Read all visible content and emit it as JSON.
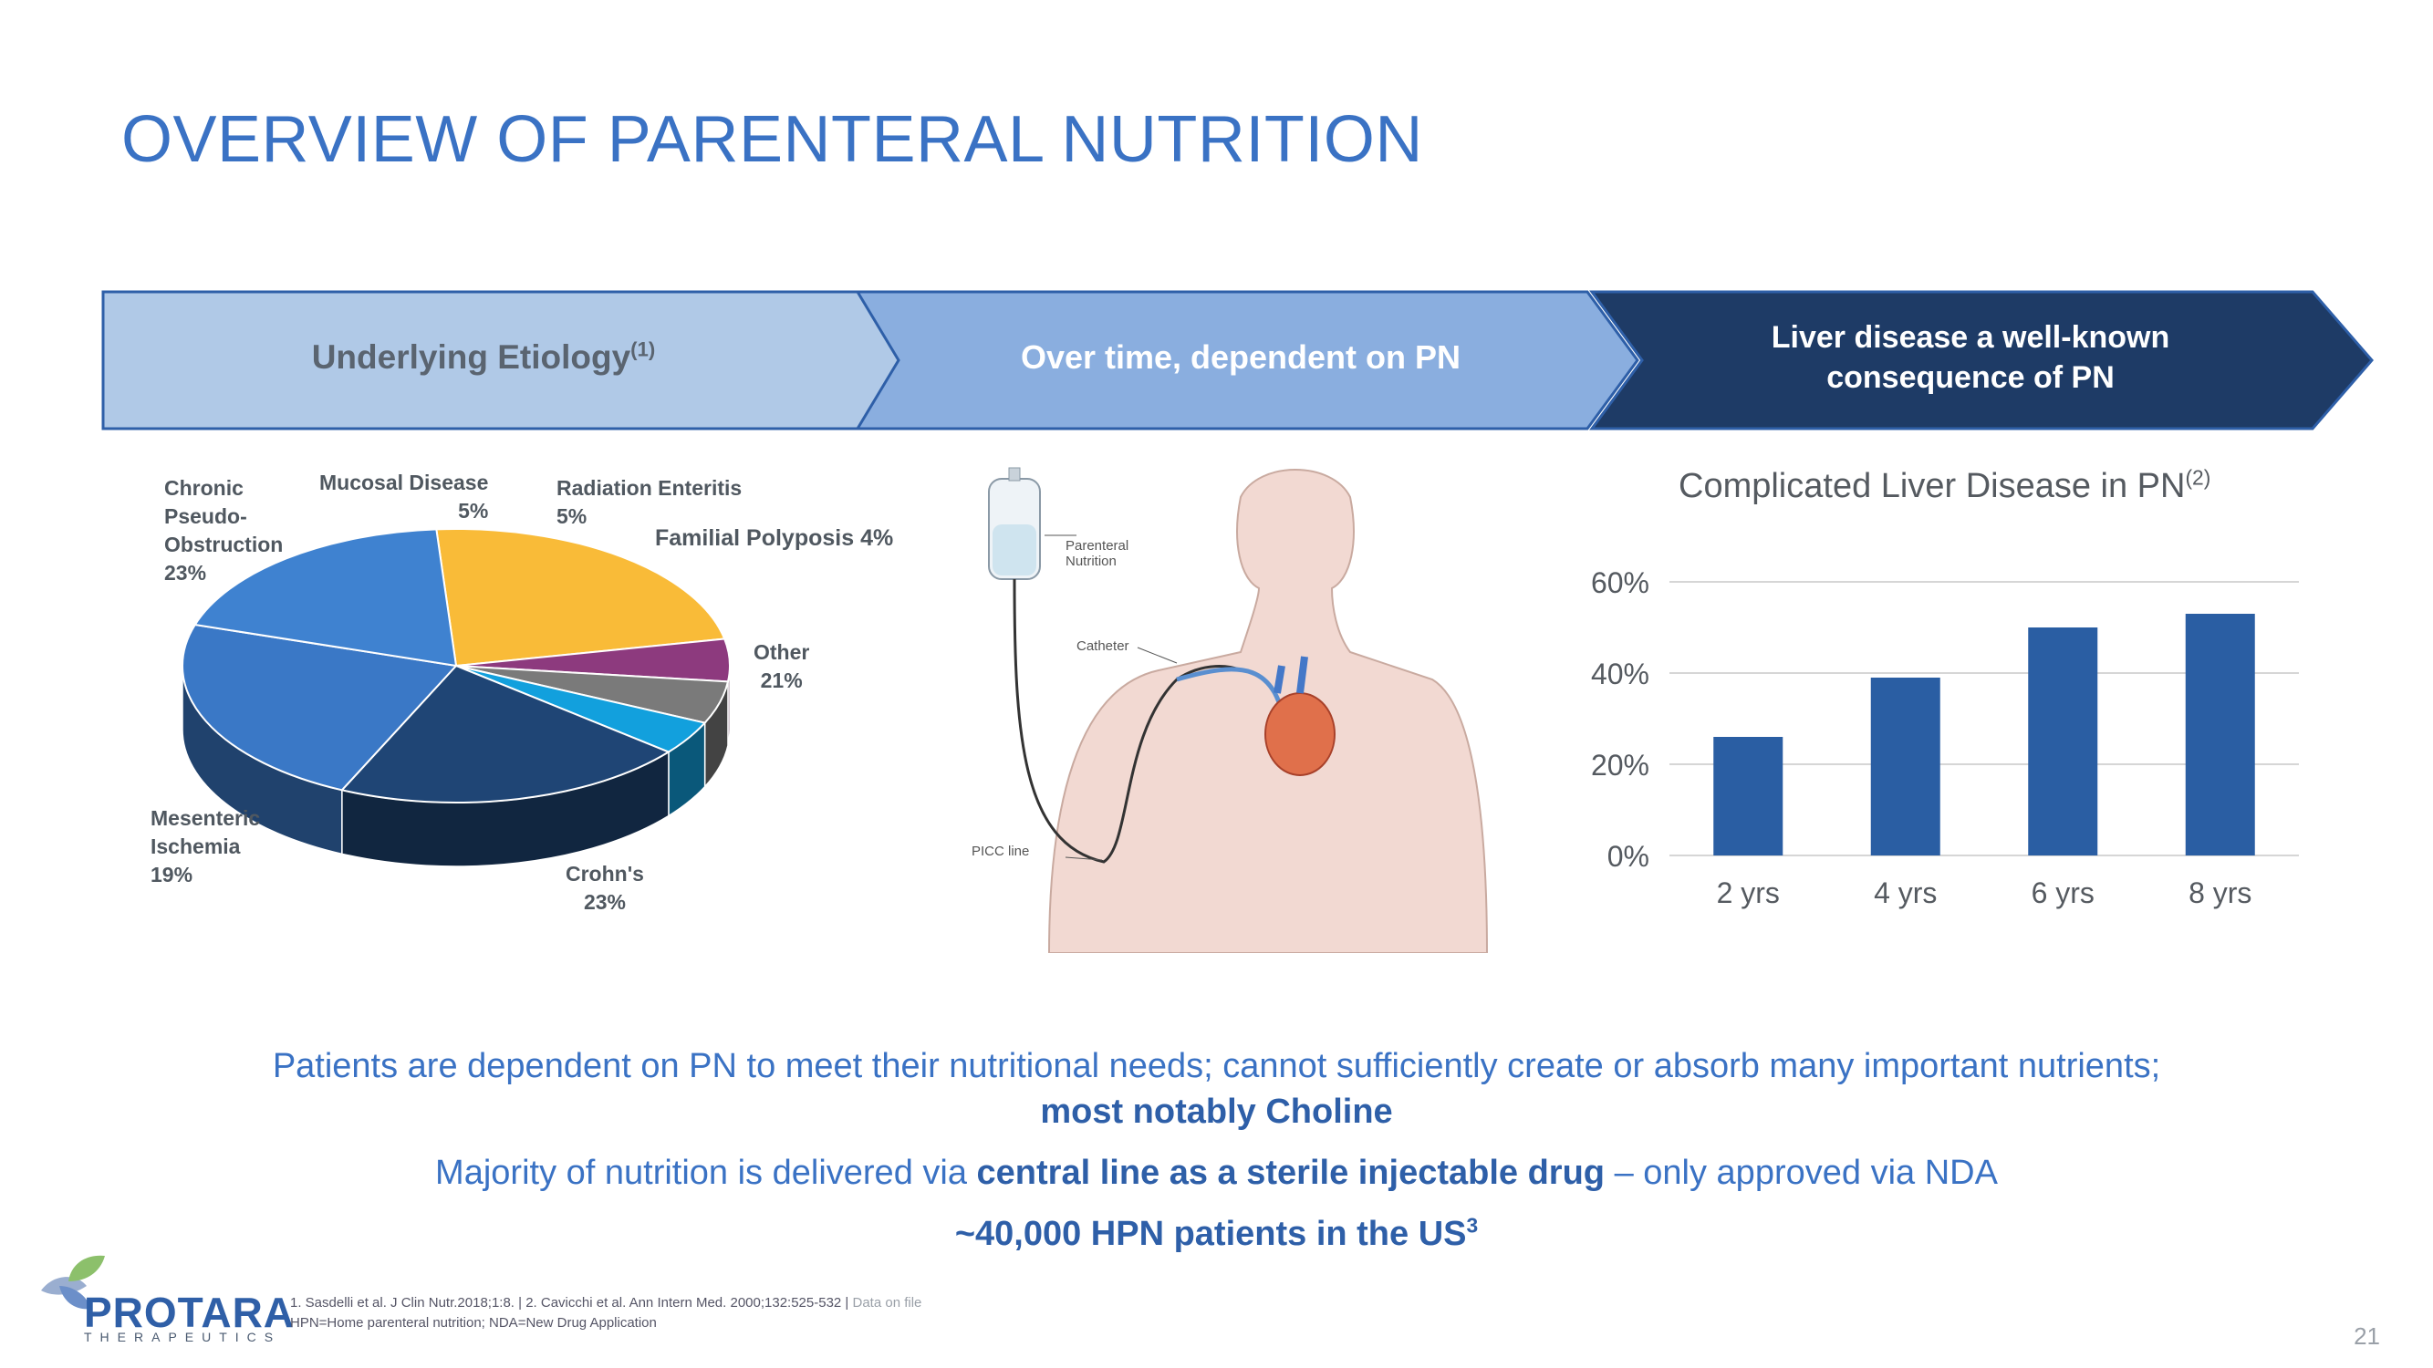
{
  "title": "OVERVIEW OF PARENTERAL NUTRITION",
  "chevrons": [
    {
      "label": "Underlying Etiology",
      "sup": "(1)"
    },
    {
      "label": "Over time, dependent on PN"
    },
    {
      "label_line1": "Liver disease a well-known",
      "label_line2": "consequence of PN"
    }
  ],
  "colors": {
    "title": "#3a72c4",
    "chev1": "#b0c9e7",
    "chev2": "#8aaedf",
    "chev3": "#1e3b66",
    "bar": "#2a5ea3"
  },
  "pie_chart": {
    "type": "pie",
    "slices": [
      {
        "label": "Chronic\nPseudo-\nObstruction\n23%",
        "value": 23,
        "color": "#f9bb38"
      },
      {
        "label": "Mucosal Disease\n5%",
        "value": 5,
        "color": "#8d3a7e"
      },
      {
        "label": "Radiation Enteritis\n5%",
        "value": 5,
        "color": "#7a7a7a"
      },
      {
        "label": "Familial Polyposis 4%",
        "value": 4,
        "color": "#12a0dd"
      },
      {
        "label": "Other\n21%",
        "value": 21,
        "color": "#1f4575"
      },
      {
        "label": "Crohn's\n23%",
        "value": 23,
        "color": "#3a78c6"
      },
      {
        "label": "Mesenteric\nIschemia\n19%",
        "value": 19,
        "color": "#3f82d0"
      }
    ]
  },
  "illustration": {
    "bag_label": "Parenteral\nNutrition",
    "catheter_label": "Catheter",
    "picc_label": "PICC line"
  },
  "chart_data": {
    "type": "bar",
    "title": "Complicated Liver Disease in PN",
    "title_sup": "(2)",
    "categories": [
      "2 yrs",
      "4 yrs",
      "6 yrs",
      "8 yrs"
    ],
    "values": [
      26,
      39,
      50,
      53
    ],
    "y_ticks": [
      "0%",
      "20%",
      "40%",
      "60%"
    ],
    "ylim": [
      0,
      60
    ],
    "grid": true
  },
  "messages": {
    "line1": "Patients are dependent on PN to meet their nutritional needs; cannot sufficiently create or absorb many important nutrients;",
    "line2": "most notably Choline",
    "line3_pre": "Majority of nutrition is delivered via ",
    "line3_bold": "central line as a sterile injectable drug",
    "line3_post": " – only approved via NDA",
    "line4": "~40,000 HPN patients in the US",
    "line4_sup": "3"
  },
  "logo": {
    "name": "PROTARA",
    "sub": "THERAPEUTICS"
  },
  "footnotes": {
    "refs": "1. Sasdelli et al. J Clin Nutr.2018;1:8. | 2. Cavicchi et al. Ann Intern Med. 2000;132:525-532 |",
    "data_on_file": "Data on file",
    "abbrev": "HPN=Home parenteral nutrition; NDA=New Drug Application"
  },
  "page_number": "21"
}
